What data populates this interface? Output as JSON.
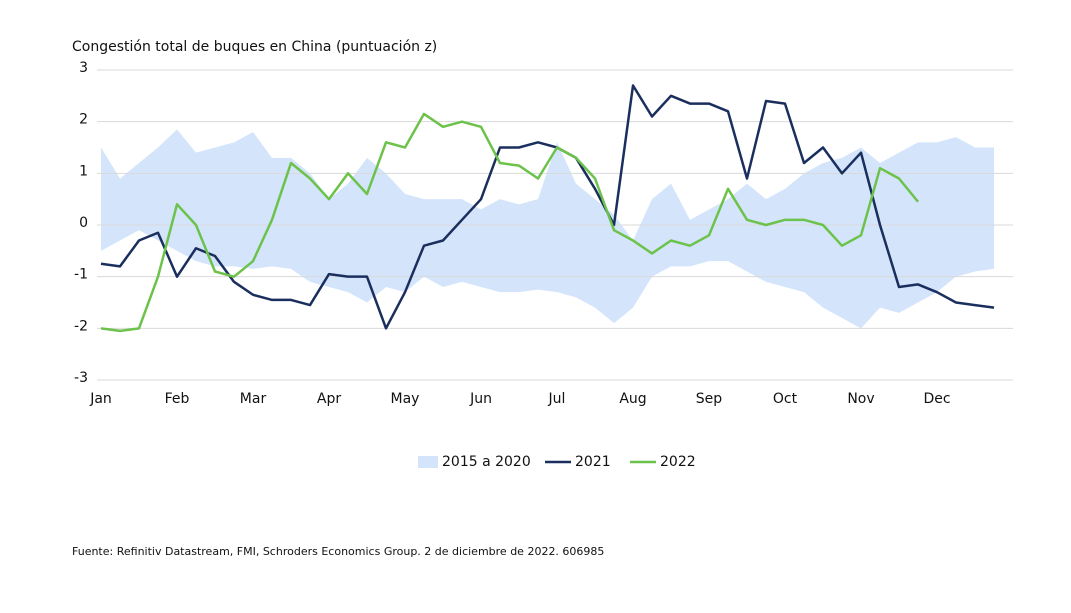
{
  "chart_data": {
    "type": "line",
    "title": "Congestión total de buques en China (puntuación z)",
    "source": "Fuente: Refinitiv Datastream, FMI, Schroders Economics Group. 2 de diciembre de 2022. 606985",
    "categories": [
      "Jan",
      null,
      null,
      null,
      "Feb",
      null,
      null,
      null,
      "Mar",
      null,
      null,
      null,
      "Apr",
      null,
      null,
      null,
      "May",
      null,
      null,
      null,
      "Jun",
      null,
      null,
      null,
      "Jul",
      null,
      null,
      null,
      "Aug",
      null,
      null,
      null,
      "Sep",
      null,
      null,
      null,
      "Oct",
      null,
      null,
      null,
      "Nov",
      null,
      null,
      null,
      "Dec",
      null,
      null,
      null
    ],
    "band": {
      "name": "2015 a 2020",
      "color": "#d4e5fb",
      "high": [
        1.5,
        0.9,
        1.2,
        1.5,
        1.85,
        1.4,
        1.5,
        1.6,
        1.8,
        1.3,
        1.3,
        1.0,
        0.5,
        0.8,
        1.3,
        1.0,
        0.6,
        0.5,
        0.5,
        0.5,
        0.3,
        0.5,
        0.4,
        0.5,
        1.6,
        0.8,
        0.5,
        0.2,
        -0.3,
        0.5,
        0.8,
        0.1,
        0.3,
        0.5,
        0.8,
        0.5,
        0.7,
        1.0,
        1.2,
        1.3,
        1.5,
        1.2,
        1.4,
        1.6,
        1.6,
        1.7,
        1.5,
        1.5
      ],
      "low": [
        -0.5,
        -0.3,
        -0.1,
        -0.3,
        -0.5,
        -0.7,
        -0.8,
        -0.8,
        -0.85,
        -0.8,
        -0.85,
        -1.1,
        -1.2,
        -1.3,
        -1.5,
        -1.2,
        -1.3,
        -1.0,
        -1.2,
        -1.1,
        -1.2,
        -1.3,
        -1.3,
        -1.25,
        -1.3,
        -1.4,
        -1.6,
        -1.9,
        -1.6,
        -1.0,
        -0.8,
        -0.8,
        -0.7,
        -0.7,
        -0.9,
        -1.1,
        -1.2,
        -1.3,
        -1.6,
        -1.8,
        -2.0,
        -1.6,
        -1.7,
        -1.5,
        -1.3,
        -1.0,
        -0.9,
        -0.85
      ]
    },
    "series": [
      {
        "name": "2021",
        "color": "#1b2f5e",
        "values": [
          -0.75,
          -0.8,
          -0.3,
          -0.15,
          -1.0,
          -0.45,
          -0.6,
          -1.1,
          -1.35,
          -1.45,
          -1.45,
          -1.55,
          -0.95,
          -1.0,
          -1.0,
          -2.0,
          -1.3,
          -0.4,
          -0.3,
          0.1,
          0.5,
          1.5,
          1.5,
          1.6,
          1.5,
          1.3,
          0.7,
          0.0,
          2.7,
          2.1,
          2.5,
          2.35,
          2.35,
          2.2,
          0.9,
          2.4,
          2.35,
          1.2,
          1.5,
          1.0,
          1.4,
          0.0,
          -1.2,
          -1.15,
          -1.3,
          -1.5,
          -1.55,
          -1.6
        ]
      },
      {
        "name": "2022",
        "color": "#6cc24a",
        "values": [
          -2.0,
          -2.05,
          -2.0,
          -1.0,
          0.4,
          0.0,
          -0.9,
          -1.0,
          -0.7,
          0.1,
          1.2,
          0.9,
          0.5,
          1.0,
          0.6,
          1.6,
          1.5,
          2.15,
          1.9,
          2.0,
          1.9,
          1.2,
          1.15,
          0.9,
          1.5,
          1.3,
          0.9,
          -0.1,
          -0.3,
          -0.55,
          -0.3,
          -0.4,
          -0.2,
          0.7,
          0.1,
          0.0,
          0.1,
          0.1,
          0.0,
          -0.4,
          -0.2,
          1.1,
          0.9,
          0.45,
          null,
          null,
          null,
          null
        ]
      }
    ],
    "ylim": [
      -3,
      3
    ],
    "yticks": [
      -3,
      -2,
      -1,
      0,
      1,
      2,
      3
    ],
    "grid": true
  }
}
